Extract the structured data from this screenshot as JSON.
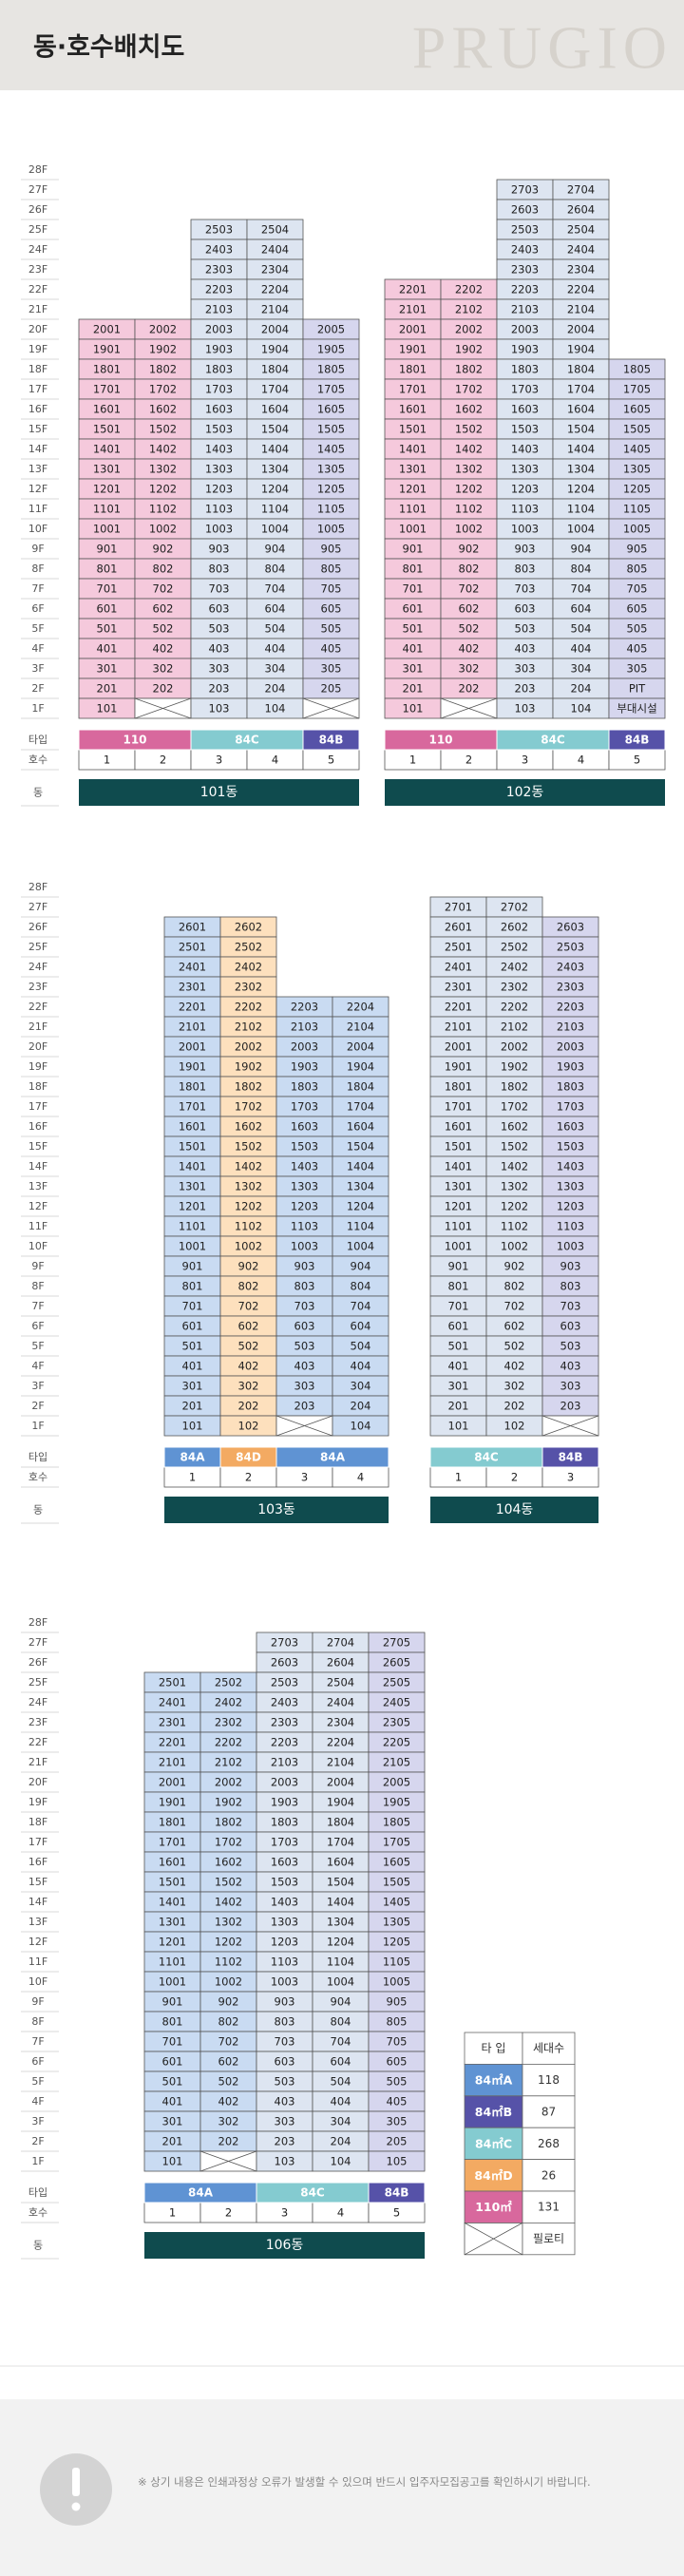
{
  "header": {
    "title": "동·호수배치도",
    "brand": "PRUGIO"
  },
  "floors": [
    "28F",
    "27F",
    "26F",
    "25F",
    "24F",
    "23F",
    "22F",
    "21F",
    "20F",
    "19F",
    "18F",
    "17F",
    "16F",
    "15F",
    "14F",
    "13F",
    "12F",
    "11F",
    "10F",
    "9F",
    "8F",
    "7F",
    "6F",
    "5F",
    "4F",
    "3F",
    "2F",
    "1F"
  ],
  "row_labels": [
    "타입",
    "호수",
    "동"
  ],
  "type_colors": {
    "84A": {
      "strong": "#5f93d3",
      "light": "#c9dbf2"
    },
    "84B": {
      "strong": "#5652a8",
      "light": "#d6d6ee"
    },
    "84C": {
      "strong": "#84cbd0",
      "light": "#dde5f1"
    },
    "84D": {
      "strong": "#f3aa62",
      "light": "#fde0bd"
    },
    "110": {
      "strong": "#d8689d",
      "light": "#f5c9dc"
    }
  },
  "buildings": [
    {
      "name": "101동",
      "columns": [
        {
          "type": "110",
          "line": 1,
          "units": [
            2001,
            1901,
            1801,
            1701,
            1601,
            1501,
            1401,
            1301,
            1201,
            1101,
            1001,
            901,
            801,
            701,
            601,
            501,
            401,
            301,
            201,
            101
          ]
        },
        {
          "type": "110",
          "line": 2,
          "units": [
            2002,
            1902,
            1802,
            1702,
            1602,
            1502,
            1402,
            1302,
            1202,
            1102,
            1002,
            902,
            802,
            702,
            602,
            502,
            402,
            302,
            202,
            null
          ]
        },
        {
          "type": "84C",
          "line": 3,
          "units": [
            2503,
            2403,
            2303,
            2203,
            2103,
            2003,
            1903,
            1803,
            1703,
            1603,
            1503,
            1403,
            1303,
            1203,
            1103,
            1003,
            903,
            803,
            703,
            603,
            503,
            403,
            303,
            203,
            103
          ]
        },
        {
          "type": "84C",
          "line": 4,
          "units": [
            2504,
            2404,
            2304,
            2204,
            2104,
            2004,
            1904,
            1804,
            1704,
            1604,
            1504,
            1404,
            1304,
            1204,
            1104,
            1004,
            904,
            804,
            704,
            604,
            504,
            404,
            304,
            204,
            104
          ]
        },
        {
          "type": "84B",
          "line": 5,
          "units": [
            2005,
            1905,
            1805,
            1705,
            1605,
            1505,
            1405,
            1305,
            1205,
            1105,
            1005,
            905,
            805,
            705,
            605,
            505,
            405,
            305,
            205,
            null
          ]
        }
      ]
    },
    {
      "name": "102동",
      "columns": [
        {
          "type": "110",
          "line": 1,
          "units": [
            2201,
            2101,
            2001,
            1901,
            1801,
            1701,
            1601,
            1501,
            1401,
            1301,
            1201,
            1101,
            1001,
            901,
            801,
            701,
            601,
            501,
            401,
            301,
            201,
            101
          ]
        },
        {
          "type": "110",
          "line": 2,
          "units": [
            2202,
            2102,
            2002,
            1902,
            1802,
            1702,
            1602,
            1502,
            1402,
            1302,
            1202,
            1102,
            1002,
            902,
            802,
            702,
            602,
            502,
            402,
            302,
            202,
            null
          ]
        },
        {
          "type": "84C",
          "line": 3,
          "units": [
            2703,
            2603,
            2503,
            2403,
            2303,
            2203,
            2103,
            2003,
            1903,
            1803,
            1703,
            1603,
            1503,
            1403,
            1303,
            1203,
            1103,
            1003,
            903,
            803,
            703,
            603,
            503,
            403,
            303,
            203,
            103
          ]
        },
        {
          "type": "84C",
          "line": 4,
          "units": [
            2704,
            2604,
            2504,
            2404,
            2304,
            2204,
            2104,
            2004,
            1904,
            1804,
            1704,
            1604,
            1504,
            1404,
            1304,
            1204,
            1104,
            1004,
            904,
            804,
            704,
            604,
            504,
            404,
            304,
            204,
            104
          ]
        },
        {
          "type": "84B",
          "line": 5,
          "units": [
            1805,
            1705,
            1605,
            1505,
            1405,
            1305,
            1205,
            1105,
            1005,
            905,
            805,
            705,
            605,
            505,
            405,
            305,
            "PIT",
            "부대시설"
          ]
        }
      ]
    },
    {
      "name": "103동",
      "columns": [
        {
          "type": "84A",
          "line": 1,
          "units": [
            2601,
            2501,
            2401,
            2301,
            2201,
            2101,
            2001,
            1901,
            1801,
            1701,
            1601,
            1501,
            1401,
            1301,
            1201,
            1101,
            1001,
            901,
            801,
            701,
            601,
            501,
            401,
            301,
            201,
            101
          ]
        },
        {
          "type": "84D",
          "line": 2,
          "units": [
            2602,
            2502,
            2402,
            2302,
            2202,
            2102,
            2002,
            1902,
            1802,
            1702,
            1602,
            1502,
            1402,
            1302,
            1202,
            1102,
            1002,
            902,
            802,
            702,
            602,
            502,
            402,
            302,
            202,
            102
          ]
        },
        {
          "type": "84A",
          "line": 3,
          "units": [
            2203,
            2103,
            2003,
            1903,
            1803,
            1703,
            1603,
            1503,
            1403,
            1303,
            1203,
            1103,
            1003,
            903,
            803,
            703,
            603,
            503,
            403,
            303,
            203,
            null
          ]
        },
        {
          "type": "84A",
          "line": 4,
          "units": [
            2204,
            2104,
            2004,
            1904,
            1804,
            1704,
            1604,
            1504,
            1404,
            1304,
            1204,
            1104,
            1004,
            904,
            804,
            704,
            604,
            504,
            404,
            304,
            204,
            104
          ]
        }
      ]
    },
    {
      "name": "104동",
      "columns": [
        {
          "type": "84C",
          "line": 1,
          "units": [
            2701,
            2601,
            2501,
            2401,
            2301,
            2201,
            2101,
            2001,
            1901,
            1801,
            1701,
            1601,
            1501,
            1401,
            1301,
            1201,
            1101,
            1001,
            901,
            801,
            701,
            601,
            501,
            401,
            301,
            201,
            101
          ]
        },
        {
          "type": "84C",
          "line": 2,
          "units": [
            2702,
            2602,
            2502,
            2402,
            2302,
            2202,
            2102,
            2002,
            1902,
            1802,
            1702,
            1602,
            1502,
            1402,
            1302,
            1202,
            1102,
            1002,
            902,
            802,
            702,
            602,
            502,
            402,
            302,
            202,
            102
          ]
        },
        {
          "type": "84B",
          "line": 3,
          "units": [
            2603,
            2503,
            2403,
            2303,
            2203,
            2103,
            2003,
            1903,
            1803,
            1703,
            1603,
            1503,
            1403,
            1303,
            1203,
            1103,
            1003,
            903,
            803,
            703,
            603,
            503,
            403,
            303,
            203,
            null
          ]
        }
      ]
    },
    {
      "name": "106동",
      "columns": [
        {
          "type": "84A",
          "line": 1,
          "units": [
            2501,
            2401,
            2301,
            2201,
            2101,
            2001,
            1901,
            1801,
            1701,
            1601,
            1501,
            1401,
            1301,
            1201,
            1101,
            1001,
            901,
            801,
            701,
            601,
            501,
            401,
            301,
            201,
            101
          ]
        },
        {
          "type": "84A",
          "line": 2,
          "units": [
            2502,
            2402,
            2302,
            2202,
            2102,
            2002,
            1902,
            1802,
            1702,
            1602,
            1502,
            1402,
            1302,
            1202,
            1102,
            1002,
            902,
            802,
            702,
            602,
            502,
            402,
            302,
            202,
            null
          ]
        },
        {
          "type": "84C",
          "line": 3,
          "units": [
            2703,
            2603,
            2503,
            2403,
            2303,
            2203,
            2103,
            2003,
            1903,
            1803,
            1703,
            1603,
            1503,
            1403,
            1303,
            1203,
            1103,
            1003,
            903,
            803,
            703,
            603,
            503,
            403,
            303,
            203,
            103
          ]
        },
        {
          "type": "84C",
          "line": 4,
          "units": [
            2704,
            2604,
            2504,
            2404,
            2304,
            2204,
            2104,
            2004,
            1904,
            1804,
            1704,
            1604,
            1504,
            1404,
            1304,
            1204,
            1104,
            1004,
            904,
            804,
            704,
            604,
            504,
            404,
            304,
            204,
            104
          ]
        },
        {
          "type": "84B",
          "line": 5,
          "units": [
            2705,
            2605,
            2505,
            2405,
            2305,
            2205,
            2105,
            2005,
            1905,
            1805,
            1705,
            1605,
            1505,
            1405,
            1305,
            1205,
            1105,
            1005,
            905,
            805,
            705,
            605,
            505,
            405,
            305,
            205,
            105
          ]
        }
      ]
    }
  ],
  "legend": {
    "header": [
      "타 입",
      "세대수"
    ],
    "items": [
      {
        "type": "84A",
        "label": "84㎡A",
        "count": 118
      },
      {
        "type": "84B",
        "label": "84㎡B",
        "count": 87
      },
      {
        "type": "84C",
        "label": "84㎡C",
        "count": 268
      },
      {
        "type": "84D",
        "label": "84㎡D",
        "count": 26
      },
      {
        "type": "110",
        "label": "110㎡",
        "count": 131
      }
    ],
    "piloti": "필로티"
  },
  "footer": {
    "note": "※ 상기 내용은 인쇄과정상 오류가 발생할 수 있으며 반드시 입주자모집공고를 확인하시기 바랍니다."
  }
}
